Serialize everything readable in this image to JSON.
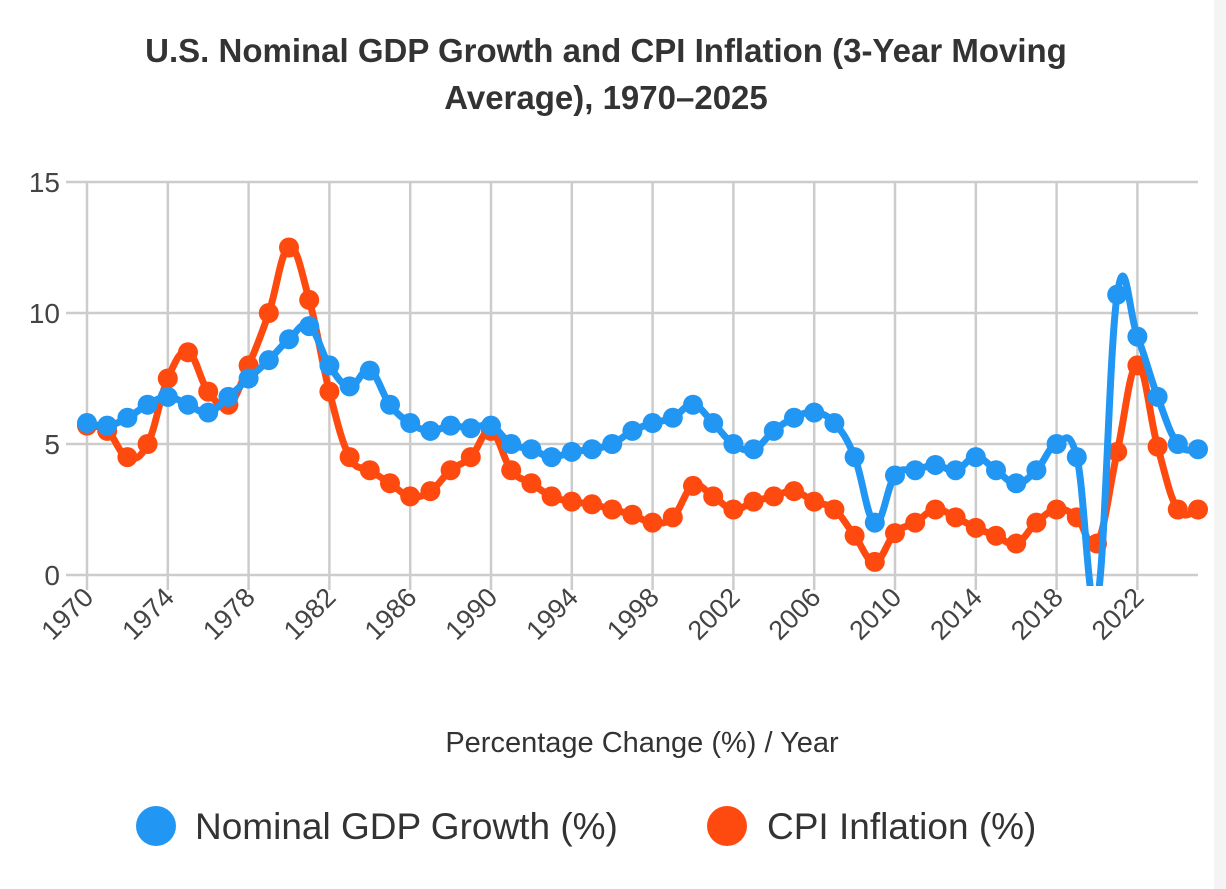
{
  "chart_data": {
    "type": "line",
    "title_line1": "U.S. Nominal GDP Growth and CPI Inflation (3-Year Moving",
    "title_line2": "Average), 1970–2025",
    "xlabel": "Percentage Change (%) / Year",
    "ylabel": "",
    "ylim": [
      0,
      15
    ],
    "yticks": [
      0,
      5,
      10,
      15
    ],
    "xlim": [
      1970,
      2025
    ],
    "xticks": [
      1970,
      1974,
      1978,
      1982,
      1986,
      1990,
      1994,
      1998,
      2002,
      2006,
      2010,
      2014,
      2018,
      2022
    ],
    "grid": true,
    "legend_position": "bottom",
    "x": [
      1970,
      1971,
      1972,
      1973,
      1974,
      1975,
      1976,
      1977,
      1978,
      1979,
      1980,
      1981,
      1982,
      1983,
      1984,
      1985,
      1986,
      1987,
      1988,
      1989,
      1990,
      1991,
      1992,
      1993,
      1994,
      1995,
      1996,
      1997,
      1998,
      1999,
      2000,
      2001,
      2002,
      2003,
      2004,
      2005,
      2006,
      2007,
      2008,
      2009,
      2010,
      2011,
      2012,
      2013,
      2014,
      2015,
      2016,
      2017,
      2018,
      2019,
      2020,
      2021,
      2022,
      2023,
      2024,
      2025
    ],
    "series": [
      {
        "name": "Nominal GDP Growth (%)",
        "color": "#2196f3",
        "values": [
          5.8,
          5.7,
          6.0,
          6.5,
          6.8,
          6.5,
          6.2,
          6.8,
          7.5,
          8.2,
          9.0,
          9.5,
          8.0,
          7.2,
          7.8,
          6.5,
          5.8,
          5.5,
          5.7,
          5.6,
          5.7,
          5.0,
          4.8,
          4.5,
          4.7,
          4.8,
          5.0,
          5.5,
          5.8,
          6.0,
          6.5,
          5.8,
          5.0,
          4.8,
          5.5,
          6.0,
          6.2,
          5.8,
          4.5,
          2.0,
          3.8,
          4.0,
          4.2,
          4.0,
          4.5,
          4.0,
          3.5,
          4.0,
          5.0,
          4.5,
          -1.0,
          10.7,
          9.1,
          6.8,
          5.0,
          4.8
        ]
      },
      {
        "name": "CPI Inflation (%)",
        "color": "#ff4a0f",
        "values": [
          5.7,
          5.5,
          4.5,
          5.0,
          7.5,
          8.5,
          7.0,
          6.5,
          8.0,
          10.0,
          12.5,
          10.5,
          7.0,
          4.5,
          4.0,
          3.5,
          3.0,
          3.2,
          4.0,
          4.5,
          5.5,
          4.0,
          3.5,
          3.0,
          2.8,
          2.7,
          2.5,
          2.3,
          2.0,
          2.2,
          3.4,
          3.0,
          2.5,
          2.8,
          3.0,
          3.2,
          2.8,
          2.5,
          1.5,
          0.5,
          1.6,
          2.0,
          2.5,
          2.2,
          1.8,
          1.5,
          1.2,
          2.0,
          2.5,
          2.2,
          1.2,
          4.7,
          8.0,
          4.9,
          2.5,
          2.5
        ]
      }
    ]
  }
}
